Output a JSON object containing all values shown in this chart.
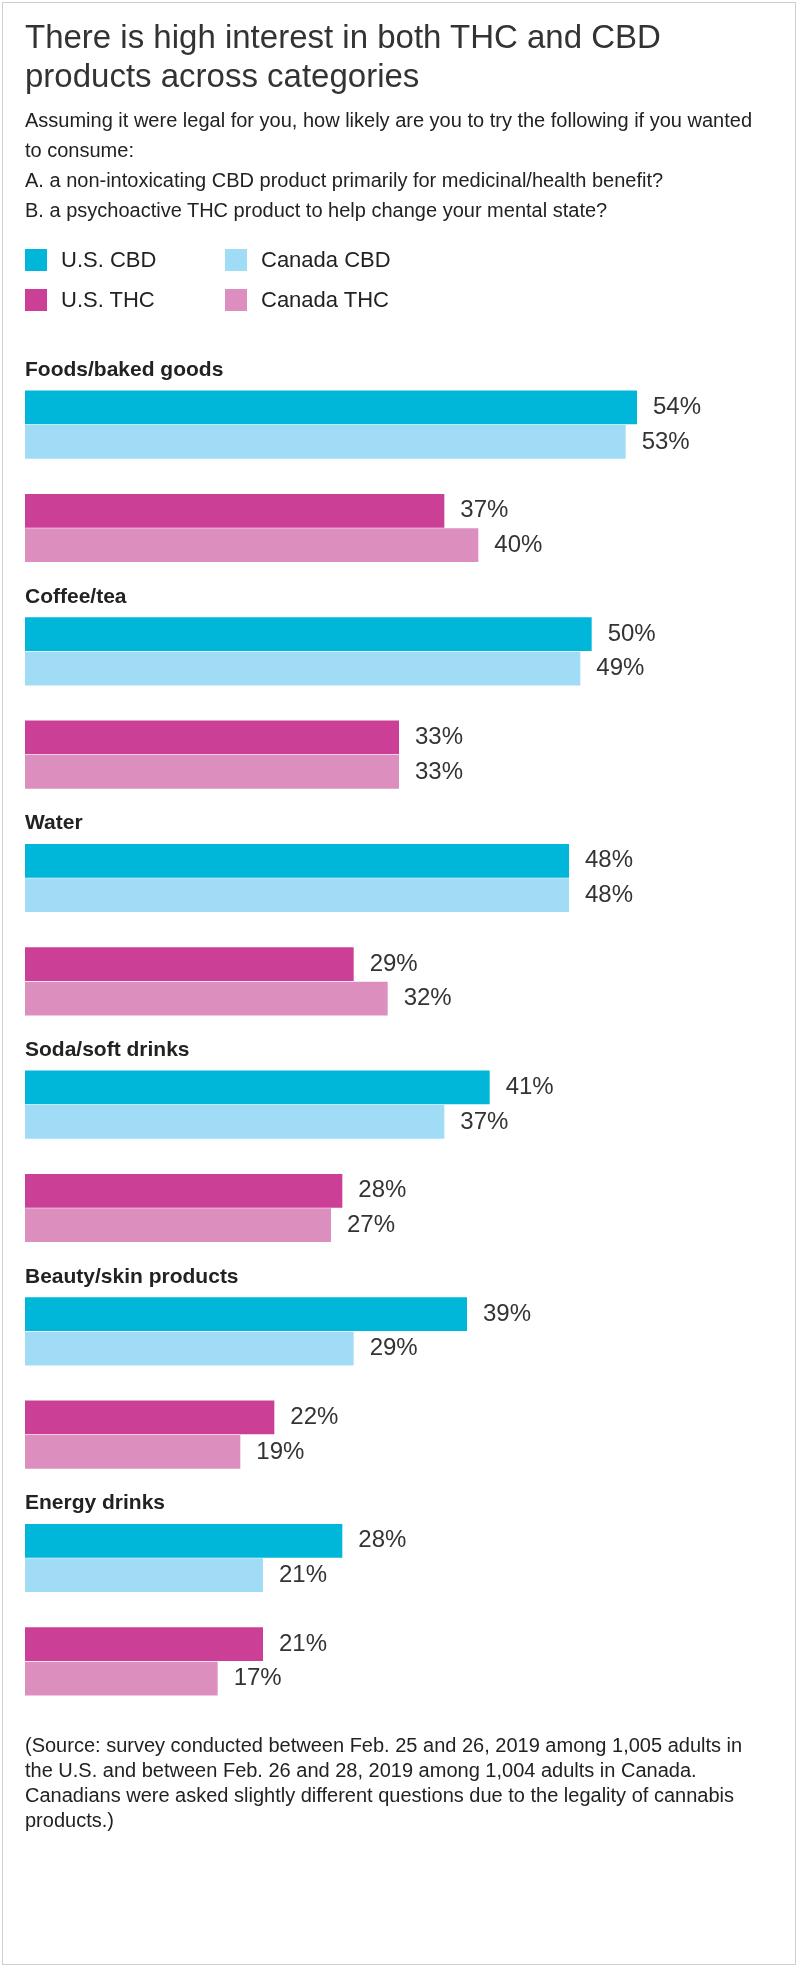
{
  "chart_data": {
    "type": "bar",
    "orientation": "horizontal",
    "title": "There is high interest in both THC and CBD products across categories",
    "subtitle": "Assuming it were legal for you, how likely are you to try the following if you wanted to consume:\nA. a non-intoxicating CBD product primarily for medicinal/health benefit?\nB. a psychoactive THC product to help change your mental state?",
    "categories": [
      "Foods/baked goods",
      "Coffee/tea",
      "Water",
      "Soda/soft drinks",
      "Beauty/skin products",
      "Energy drinks"
    ],
    "series": [
      {
        "name": "U.S. CBD",
        "color": "#00b6d9",
        "values": [
          54,
          50,
          48,
          41,
          39,
          28
        ],
        "value_labels": [
          "54%",
          "50%",
          "48%",
          "41%",
          "39%",
          "28%"
        ]
      },
      {
        "name": "Canada CBD",
        "color": "#a1dcf6",
        "values": [
          53,
          49,
          48,
          37,
          29,
          21
        ],
        "value_labels": [
          "53%",
          "49%",
          "48%",
          "37%",
          "29%",
          "21%"
        ]
      },
      {
        "name": "U.S. THC",
        "color": "#cc3f96",
        "values": [
          37,
          33,
          29,
          28,
          22,
          21
        ],
        "value_labels": [
          "37%",
          "33%",
          "29%",
          "28%",
          "22%",
          "21%"
        ]
      },
      {
        "name": "Canada THC",
        "color": "#dc8fbe",
        "values": [
          40,
          33,
          32,
          27,
          19,
          17
        ],
        "value_labels": [
          "40%",
          "33%",
          "32%",
          "27%",
          "19%",
          "17%"
        ]
      }
    ],
    "legend": "top left",
    "annotations": [
      "(Source: survey conducted between Feb. 25 and 26, 2019 among 1,005 adults in the U.S. and between Feb. 26 and 28, 2019 among 1,004 adults in Canada.\nCanadians were asked slightly different questions due to the legality of cannabis products.)"
    ]
  }
}
